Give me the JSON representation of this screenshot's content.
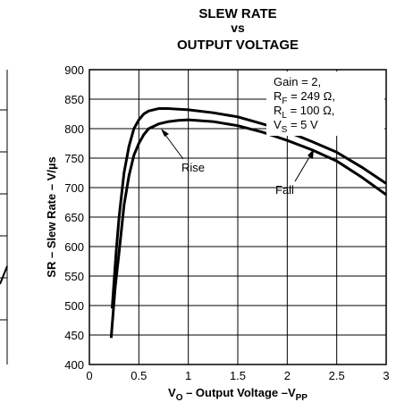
{
  "chart_data": {
    "type": "line",
    "title": [
      "SLEW RATE",
      "vs",
      "OUTPUT VOLTAGE"
    ],
    "xlabel": [
      "V",
      "O",
      " – Output Voltage –V",
      "PP"
    ],
    "ylabel": "SR – Slew Rate – V/µs",
    "conditions": [
      [
        "Gain = 2,"
      ],
      [
        "R",
        "F",
        " = 249 Ω,"
      ],
      [
        "R",
        "L",
        " = 100 Ω,"
      ],
      [
        "V",
        "S",
        " = 5 V"
      ]
    ],
    "xlim": [
      0,
      3
    ],
    "xticks": [
      0,
      0.5,
      1,
      1.5,
      2,
      2.5,
      3
    ],
    "ylim": [
      400,
      900
    ],
    "yticks": [
      400,
      450,
      500,
      550,
      600,
      650,
      700,
      750,
      800,
      850,
      900
    ],
    "grid": true,
    "series": [
      {
        "name": "Fall",
        "color": "#000000",
        "x": [
          0.23,
          0.27,
          0.3,
          0.35,
          0.4,
          0.45,
          0.5,
          0.55,
          0.6,
          0.7,
          0.8,
          1,
          1.25,
          1.5,
          1.75,
          2,
          2.25,
          2.5,
          2.75,
          3
        ],
        "values": [
          495,
          590,
          650,
          725,
          770,
          800,
          815,
          825,
          830,
          834,
          834,
          832,
          827,
          820,
          808,
          795,
          778,
          760,
          735,
          707
        ]
      },
      {
        "name": "Rise",
        "color": "#000000",
        "x": [
          0.22,
          0.26,
          0.3,
          0.35,
          0.4,
          0.45,
          0.5,
          0.55,
          0.6,
          0.7,
          0.8,
          0.9,
          1,
          1.25,
          1.5,
          1.75,
          2,
          2.25,
          2.5,
          2.75,
          3
        ],
        "values": [
          445,
          530,
          590,
          670,
          720,
          755,
          775,
          790,
          800,
          808,
          812,
          814,
          815,
          812,
          805,
          794,
          780,
          764,
          745,
          718,
          688
        ]
      }
    ]
  }
}
